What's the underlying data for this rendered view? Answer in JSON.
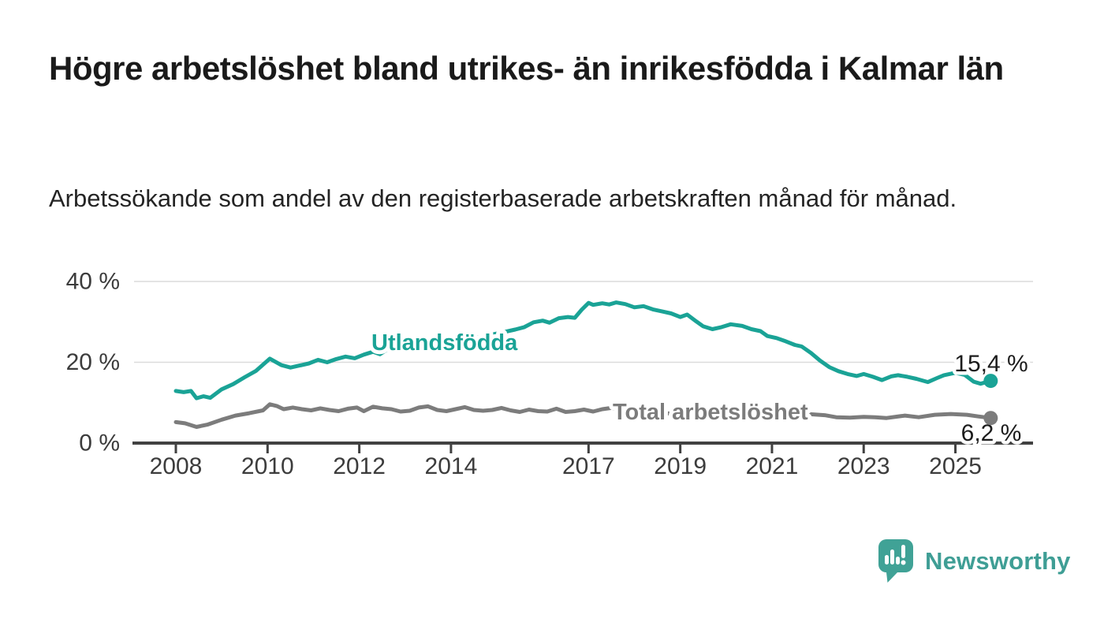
{
  "header": {
    "title": "Högre arbetslöshet bland utrikes- än inrikesfödda i Kalmar län",
    "subtitle": "Arbetssökande som andel av den registerbaserade arbetskraften månad för månad."
  },
  "branding": {
    "name": "Newsworthy",
    "logo_icon": "bar-chart-speech-bubble",
    "logo_color": "#40a296",
    "text_color": "#3f9e95"
  },
  "chart_data": {
    "type": "line",
    "unit": "%",
    "grid": "horizontal",
    "x_axis": {
      "ticks": [
        2008,
        2010,
        2012,
        2014,
        2017,
        2019,
        2021,
        2023,
        2025
      ],
      "range": [
        2007.1,
        2026.7
      ]
    },
    "y_axis": {
      "tick_labels": [
        "0 %",
        "20 %",
        "40 %"
      ],
      "tick_values": [
        0,
        20,
        40
      ],
      "range": [
        0,
        40
      ]
    },
    "colors": {
      "grid": "#dcdcdc",
      "axis": "#414141",
      "tick_text": "#3c3c3c",
      "value_label_text": "#1c1c1c"
    },
    "series": [
      {
        "name": "Utlandsfödda",
        "color": "#1aa396",
        "end_label": "15,4 %",
        "end_value": 15.4,
        "points": [
          [
            2008.0,
            12.9
          ],
          [
            2008.17,
            12.6
          ],
          [
            2008.33,
            12.9
          ],
          [
            2008.45,
            11.1
          ],
          [
            2008.6,
            11.6
          ],
          [
            2008.75,
            11.2
          ],
          [
            2009.0,
            13.3
          ],
          [
            2009.25,
            14.6
          ],
          [
            2009.5,
            16.3
          ],
          [
            2009.75,
            17.9
          ],
          [
            2010.05,
            20.9
          ],
          [
            2010.3,
            19.3
          ],
          [
            2010.5,
            18.7
          ],
          [
            2010.7,
            19.2
          ],
          [
            2010.9,
            19.7
          ],
          [
            2011.1,
            20.6
          ],
          [
            2011.3,
            20.0
          ],
          [
            2011.5,
            20.8
          ],
          [
            2011.7,
            21.4
          ],
          [
            2011.9,
            21.0
          ],
          [
            2012.1,
            21.9
          ],
          [
            2012.3,
            22.6
          ],
          [
            2012.45,
            22.0
          ],
          [
            2012.6,
            23.1
          ],
          [
            2012.9,
            23.4
          ],
          [
            2013.2,
            23.8
          ],
          [
            2013.6,
            24.3
          ],
          [
            2014.0,
            25.0
          ],
          [
            2014.5,
            26.0
          ],
          [
            2015.0,
            27.1
          ],
          [
            2015.4,
            28.1
          ],
          [
            2015.6,
            28.7
          ],
          [
            2015.8,
            29.9
          ],
          [
            2016.0,
            30.3
          ],
          [
            2016.15,
            29.8
          ],
          [
            2016.35,
            30.9
          ],
          [
            2016.55,
            31.2
          ],
          [
            2016.7,
            31.0
          ],
          [
            2016.85,
            33.0
          ],
          [
            2017.0,
            34.7
          ],
          [
            2017.1,
            34.2
          ],
          [
            2017.3,
            34.6
          ],
          [
            2017.45,
            34.3
          ],
          [
            2017.6,
            34.8
          ],
          [
            2017.8,
            34.4
          ],
          [
            2018.0,
            33.6
          ],
          [
            2018.2,
            33.9
          ],
          [
            2018.4,
            33.1
          ],
          [
            2018.6,
            32.6
          ],
          [
            2018.8,
            32.1
          ],
          [
            2019.0,
            31.2
          ],
          [
            2019.15,
            31.8
          ],
          [
            2019.35,
            30.1
          ],
          [
            2019.5,
            28.9
          ],
          [
            2019.7,
            28.2
          ],
          [
            2019.9,
            28.7
          ],
          [
            2020.1,
            29.4
          ],
          [
            2020.35,
            29.0
          ],
          [
            2020.55,
            28.2
          ],
          [
            2020.75,
            27.7
          ],
          [
            2020.9,
            26.5
          ],
          [
            2021.1,
            26.0
          ],
          [
            2021.3,
            25.2
          ],
          [
            2021.5,
            24.3
          ],
          [
            2021.65,
            23.9
          ],
          [
            2021.85,
            22.3
          ],
          [
            2022.05,
            20.4
          ],
          [
            2022.25,
            18.8
          ],
          [
            2022.45,
            17.8
          ],
          [
            2022.65,
            17.1
          ],
          [
            2022.85,
            16.6
          ],
          [
            2023.0,
            17.1
          ],
          [
            2023.2,
            16.4
          ],
          [
            2023.4,
            15.6
          ],
          [
            2023.6,
            16.5
          ],
          [
            2023.75,
            16.8
          ],
          [
            2023.95,
            16.4
          ],
          [
            2024.15,
            15.9
          ],
          [
            2024.4,
            15.1
          ],
          [
            2024.6,
            16.1
          ],
          [
            2024.75,
            16.8
          ],
          [
            2025.0,
            17.4
          ],
          [
            2025.2,
            16.9
          ],
          [
            2025.4,
            15.2
          ],
          [
            2025.55,
            14.7
          ],
          [
            2025.77,
            15.4
          ]
        ]
      },
      {
        "name": "Total arbetslöshet",
        "color": "#7c7c7c",
        "end_label": "6,2 %",
        "end_value": 6.2,
        "points": [
          [
            2008.0,
            5.2
          ],
          [
            2008.2,
            4.9
          ],
          [
            2008.45,
            4.0
          ],
          [
            2008.7,
            4.6
          ],
          [
            2009.0,
            5.8
          ],
          [
            2009.3,
            6.8
          ],
          [
            2009.6,
            7.4
          ],
          [
            2009.9,
            8.1
          ],
          [
            2010.05,
            9.6
          ],
          [
            2010.2,
            9.2
          ],
          [
            2010.35,
            8.4
          ],
          [
            2010.55,
            8.8
          ],
          [
            2010.75,
            8.4
          ],
          [
            2010.95,
            8.1
          ],
          [
            2011.15,
            8.6
          ],
          [
            2011.35,
            8.2
          ],
          [
            2011.55,
            7.9
          ],
          [
            2011.75,
            8.5
          ],
          [
            2011.95,
            8.8
          ],
          [
            2012.1,
            7.9
          ],
          [
            2012.3,
            9.0
          ],
          [
            2012.5,
            8.6
          ],
          [
            2012.7,
            8.4
          ],
          [
            2012.9,
            7.8
          ],
          [
            2013.1,
            8.0
          ],
          [
            2013.3,
            8.8
          ],
          [
            2013.5,
            9.1
          ],
          [
            2013.7,
            8.2
          ],
          [
            2013.9,
            7.9
          ],
          [
            2014.1,
            8.4
          ],
          [
            2014.3,
            8.9
          ],
          [
            2014.5,
            8.2
          ],
          [
            2014.7,
            8.0
          ],
          [
            2014.9,
            8.2
          ],
          [
            2015.1,
            8.7
          ],
          [
            2015.3,
            8.1
          ],
          [
            2015.5,
            7.7
          ],
          [
            2015.7,
            8.3
          ],
          [
            2015.9,
            7.9
          ],
          [
            2016.1,
            7.8
          ],
          [
            2016.3,
            8.5
          ],
          [
            2016.5,
            7.7
          ],
          [
            2016.7,
            7.9
          ],
          [
            2016.9,
            8.3
          ],
          [
            2017.1,
            7.8
          ],
          [
            2017.3,
            8.4
          ],
          [
            2017.5,
            8.7
          ],
          [
            2017.8,
            8.2
          ],
          [
            2018.1,
            7.9
          ],
          [
            2018.5,
            7.5
          ],
          [
            2019.0,
            7.2
          ],
          [
            2019.5,
            7.0
          ],
          [
            2019.9,
            7.3
          ],
          [
            2020.2,
            8.8
          ],
          [
            2020.5,
            8.5
          ],
          [
            2021.0,
            7.9
          ],
          [
            2021.5,
            7.4
          ],
          [
            2021.9,
            7.1
          ],
          [
            2022.15,
            6.9
          ],
          [
            2022.4,
            6.4
          ],
          [
            2022.7,
            6.3
          ],
          [
            2023.0,
            6.5
          ],
          [
            2023.25,
            6.4
          ],
          [
            2023.5,
            6.2
          ],
          [
            2023.9,
            6.8
          ],
          [
            2024.2,
            6.4
          ],
          [
            2024.55,
            7.0
          ],
          [
            2024.9,
            7.2
          ],
          [
            2025.25,
            7.0
          ],
          [
            2025.5,
            6.6
          ],
          [
            2025.77,
            6.2
          ]
        ]
      }
    ]
  }
}
